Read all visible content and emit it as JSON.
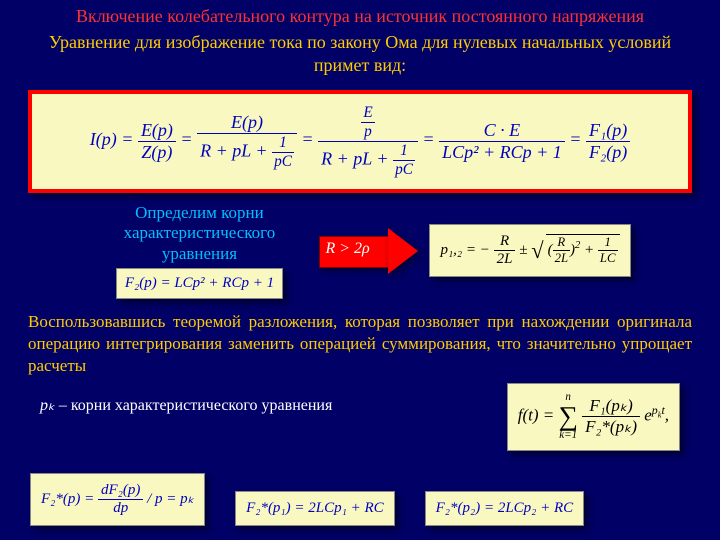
{
  "colors": {
    "background": "#000066",
    "title": "#ff3232",
    "subtitle": "#ffcc00",
    "formula_bg": "#f8f8c0",
    "formula_border": "#ff0000",
    "formula_text": "#0000c0",
    "roots_text": "#00bfff",
    "arrow_fill": "#ff0000",
    "arrow_text": "#ffffff",
    "body_text": "#ffcc00",
    "pk_text": "#ffffff"
  },
  "title": "Включение колебательного контура на источник постоянного напряжения",
  "subtitle": "Уравнение для изображение тока по закону Ома для нулевых начальных условий примет вид:",
  "main_formula": {
    "lhs": "I(p)",
    "term1_num": "E(p)",
    "term1_den": "Z(p)",
    "term2_num": "E(p)",
    "term2_den_a": "R + pL +",
    "term2_den_b_num": "1",
    "term2_den_b_den": "pC",
    "term3_num_num": "E",
    "term3_num_den": "p",
    "term3_den_a": "R + pL +",
    "term3_den_b_num": "1",
    "term3_den_b_den": "pC",
    "term4_num": "C · E",
    "term4_den": "LCp² + RCp + 1",
    "term5_num": "F₁(p)",
    "term5_den": "F₂(p)"
  },
  "roots_label": "Определим корни характеристического уравнения",
  "f2_formula": "F₂(p) = LCp² + RCp + 1",
  "arrow_text": "R > 2ρ",
  "p12_formula": {
    "lhs": "p₁,₂ = −",
    "first_num": "R",
    "first_den": "2L",
    "pm": " ± ",
    "under_a_num": "R",
    "under_a_den": "2L",
    "under_b_num": "1",
    "under_b_den": "LC"
  },
  "paragraph": "Воспользовавшись теоремой разложения, которая позволяет при нахождении оригинала операцию интегрирования заменить операцией суммирования, что значительно упрощает расчеты",
  "pk_label_i": "pₖ",
  "pk_label_rest": " – корни характеристического уравнения",
  "ft_formula": {
    "lhs": "f(t) = ",
    "sum_top": "n",
    "sum_bot": "k=1",
    "num": "F₁(pₖ)",
    "den": "F₂*(pₖ)",
    "exp": "e^{pₖt}",
    "comma": ","
  },
  "f2star_def": {
    "lhs": "F₂*(p) = ",
    "num": "dF₂(p)",
    "den": "dp",
    "tail": " / p = pₖ"
  },
  "f2star_p1": "F₂*(p₁) = 2LCp₁ + RC",
  "f2star_p2": "F₂*(p₂) = 2LCp₂ + RC"
}
